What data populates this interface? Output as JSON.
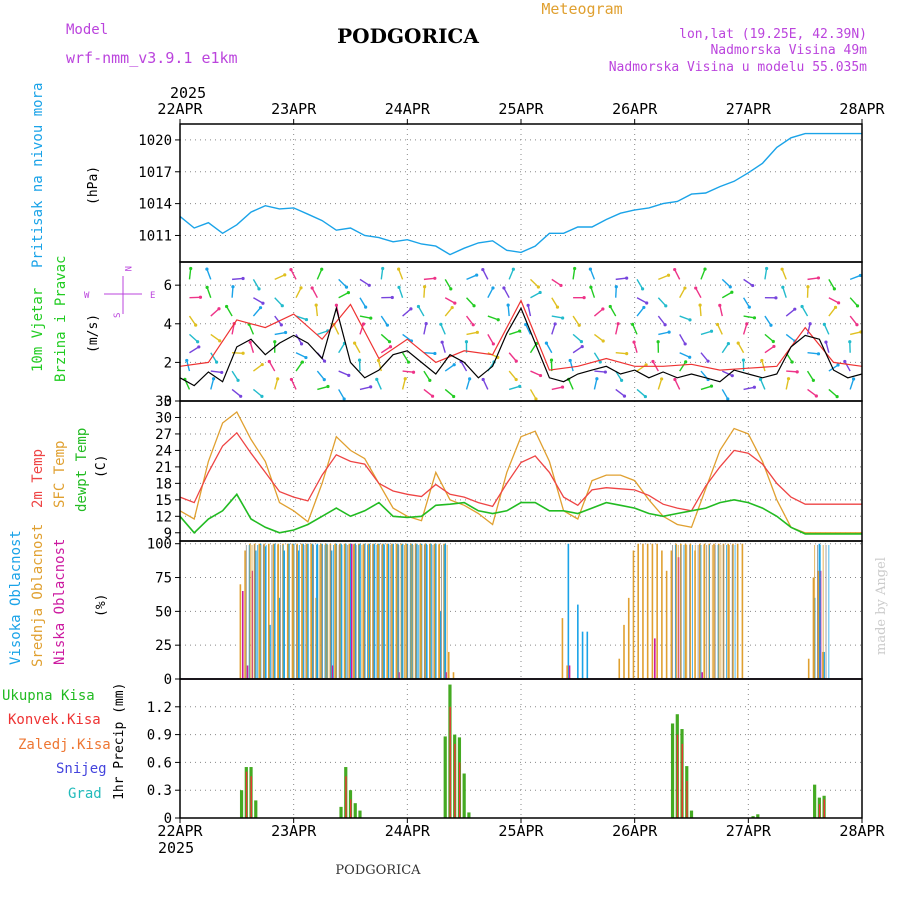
{
  "header": {
    "title": "PODGORICA",
    "subtitle": "Meteogram",
    "model_label": "Model",
    "model_name": "wrf-nmm_v3.9.1  e1km",
    "coords": "lon,lat (19.25E, 42.39N)",
    "elevation": "Nadmorska Visina 49m",
    "model_elevation": "Nadmorska Visina u modelu 55.035m",
    "year_top": "2025",
    "year_bottom": "2025",
    "footer_title": "PODGORICA",
    "credit": "made by Angel"
  },
  "colors": {
    "pressure": "#1aa3e8",
    "wind_label": "#22cc22",
    "wind_speed": "#000000",
    "wind_gust": "#ee3333",
    "temp_2m": "#ee4444",
    "temp_sfc": "#e0a030",
    "dewpoint": "#22bb22",
    "cloud_high": "#1aa3e8",
    "cloud_mid": "#e0a030",
    "cloud_low": "#cc1aa0",
    "precip_total": "#44aa22",
    "precip_conv": "#ee3333",
    "precip_frozen": "#ee7733",
    "snow": "#4444dd",
    "hail": "#22bbbb",
    "compass": "#bb44dd",
    "grid": "#888888"
  },
  "chart_data": [
    {
      "type": "line",
      "panel": "pressure",
      "label": "Pritisak na nivou mora",
      "unit": "(hPa)",
      "x_ticks": [
        "22APR",
        "23APR",
        "24APR",
        "25APR",
        "26APR",
        "27APR",
        "28APR"
      ],
      "x_range_hours": [
        0,
        144
      ],
      "ylim": [
        1008.5,
        1021.5
      ],
      "y_ticks": [
        1011,
        1014,
        1017,
        1020
      ],
      "series": [
        {
          "key": "pressure",
          "x": [
            0,
            3,
            6,
            9,
            12,
            15,
            18,
            21,
            24,
            27,
            30,
            33,
            36,
            39,
            42,
            45,
            48,
            51,
            54,
            57,
            60,
            63,
            66,
            69,
            72,
            75,
            78,
            81,
            84,
            87,
            90,
            93,
            96,
            99,
            102,
            105,
            108,
            111,
            114,
            117,
            120,
            123,
            126,
            129,
            132,
            135,
            138,
            141,
            144
          ],
          "values": [
            1012.8,
            1011.7,
            1012.2,
            1011.2,
            1012.0,
            1013.2,
            1013.8,
            1013.5,
            1013.6,
            1013.0,
            1012.4,
            1011.5,
            1011.7,
            1011.0,
            1010.8,
            1010.4,
            1010.6,
            1010.2,
            1010.0,
            1009.2,
            1009.8,
            1010.3,
            1010.5,
            1009.6,
            1009.4,
            1010.0,
            1011.2,
            1011.2,
            1011.8,
            1011.8,
            1012.5,
            1013.1,
            1013.4,
            1013.6,
            1014.0,
            1014.2,
            1014.9,
            1015.0,
            1015.6,
            1016.1,
            1016.9,
            1017.8,
            1019.3,
            1020.2,
            1020.6,
            1020.6,
            1020.6,
            1020.6,
            1020.6
          ]
        }
      ]
    },
    {
      "type": "line",
      "panel": "wind",
      "label_1": "10m Vjetar",
      "label_2": "Brzina i Pravac",
      "unit": "(m/s)",
      "compass_n": "N",
      "compass_w": "W",
      "compass_e": "E",
      "compass_s": "S",
      "ylim": [
        0,
        7.2
      ],
      "y_ticks": [
        0,
        2,
        4,
        6
      ],
      "series": [
        {
          "key": "wind_speed",
          "x": [
            0,
            3,
            6,
            9,
            12,
            15,
            18,
            21,
            24,
            27,
            30,
            33,
            36,
            39,
            42,
            45,
            48,
            51,
            54,
            57,
            60,
            63,
            66,
            69,
            72,
            75,
            78,
            81,
            84,
            87,
            90,
            93,
            96,
            99,
            102,
            105,
            108,
            111,
            114,
            117,
            120,
            123,
            126,
            129,
            132,
            135,
            138,
            141,
            144
          ],
          "values": [
            1.2,
            0.8,
            1.5,
            1.0,
            2.8,
            3.2,
            2.4,
            3.0,
            3.4,
            3.0,
            2.2,
            4.8,
            2.0,
            1.2,
            1.6,
            2.4,
            2.6,
            2.0,
            1.4,
            2.4,
            2.0,
            1.2,
            1.8,
            3.5,
            4.8,
            3.0,
            1.2,
            1.0,
            1.4,
            1.6,
            1.8,
            1.4,
            1.6,
            1.2,
            1.5,
            1.2,
            1.4,
            1.2,
            1.0,
            1.6,
            1.4,
            1.2,
            1.4,
            2.8,
            3.4,
            3.2,
            1.6,
            1.2,
            1.4
          ]
        },
        {
          "key": "wind_gust",
          "x": [
            0,
            6,
            12,
            18,
            24,
            30,
            36,
            42,
            48,
            54,
            60,
            66,
            72,
            78,
            84,
            90,
            96,
            102,
            108,
            114,
            120,
            126,
            132,
            138,
            144
          ],
          "values": [
            1.8,
            2.0,
            4.2,
            3.8,
            4.5,
            3.2,
            5.0,
            2.2,
            3.2,
            2.0,
            2.6,
            2.4,
            5.2,
            1.6,
            1.8,
            2.2,
            1.8,
            1.8,
            1.9,
            1.6,
            1.7,
            1.8,
            3.8,
            2.0,
            1.8
          ]
        }
      ]
    },
    {
      "type": "line",
      "panel": "temperature",
      "label_1": "2m Temp",
      "label_2": "SFC Temp",
      "label_3": "dewpt Temp",
      "unit": "(C)",
      "ylim": [
        7.5,
        33
      ],
      "y_ticks": [
        9,
        12,
        15,
        18,
        21,
        24,
        27,
        30,
        33
      ],
      "series": [
        {
          "key": "temp_2m",
          "x": [
            0,
            3,
            6,
            9,
            12,
            15,
            18,
            21,
            24,
            27,
            30,
            33,
            36,
            39,
            42,
            45,
            48,
            51,
            54,
            57,
            60,
            63,
            66,
            69,
            72,
            75,
            78,
            81,
            84,
            87,
            90,
            93,
            96,
            99,
            102,
            105,
            108,
            111,
            114,
            117,
            120,
            123,
            126,
            129,
            132,
            135,
            138,
            141,
            144
          ],
          "values": [
            15.5,
            14.5,
            20.0,
            24.8,
            27.2,
            23.5,
            20.0,
            16.5,
            15.5,
            14.8,
            19.5,
            23.2,
            22.0,
            21.5,
            18.0,
            16.6,
            16.0,
            15.6,
            17.8,
            16.0,
            15.5,
            14.5,
            13.8,
            18.0,
            21.8,
            23.0,
            20.0,
            15.5,
            14.0,
            16.8,
            17.2,
            17.0,
            16.8,
            15.8,
            14.2,
            13.5,
            13.0,
            17.5,
            21.0,
            24.0,
            23.5,
            21.5,
            18.0,
            15.5,
            14.2,
            14.2,
            14.2,
            14.2,
            14.2
          ]
        },
        {
          "key": "temp_sfc",
          "x": [
            0,
            3,
            6,
            9,
            12,
            15,
            18,
            21,
            24,
            27,
            30,
            33,
            36,
            39,
            42,
            45,
            48,
            51,
            54,
            57,
            60,
            63,
            66,
            69,
            72,
            75,
            78,
            81,
            84,
            87,
            90,
            93,
            96,
            99,
            102,
            105,
            108,
            111,
            114,
            117,
            120,
            123,
            126,
            129,
            132,
            135,
            138,
            141,
            144
          ],
          "values": [
            13.0,
            11.5,
            22.0,
            29.0,
            31.0,
            26.0,
            22.0,
            14.5,
            13.0,
            11.0,
            18.0,
            26.5,
            24.0,
            22.5,
            18.0,
            13.5,
            12.0,
            11.2,
            20.0,
            15.0,
            14.0,
            12.5,
            10.5,
            20.0,
            26.5,
            27.5,
            22.0,
            13.0,
            11.5,
            18.5,
            19.5,
            19.5,
            18.5,
            15.0,
            12.0,
            10.5,
            10.0,
            17.0,
            24.0,
            28.0,
            27.0,
            22.0,
            15.0,
            10.0,
            9.0,
            9.0,
            9.0,
            9.0,
            9.0
          ]
        },
        {
          "key": "dewpoint",
          "x": [
            0,
            3,
            6,
            9,
            12,
            15,
            18,
            21,
            24,
            27,
            30,
            33,
            36,
            39,
            42,
            45,
            48,
            51,
            54,
            57,
            60,
            63,
            66,
            69,
            72,
            75,
            78,
            81,
            84,
            87,
            90,
            93,
            96,
            99,
            102,
            105,
            108,
            111,
            114,
            117,
            120,
            123,
            126,
            129,
            132,
            135,
            138,
            141,
            144
          ],
          "values": [
            12.0,
            9.0,
            11.5,
            13.0,
            16.0,
            11.5,
            10.0,
            9.0,
            9.5,
            10.5,
            12.0,
            13.5,
            12.0,
            13.0,
            14.5,
            12.0,
            11.8,
            12.0,
            14.0,
            14.2,
            14.5,
            13.0,
            12.5,
            13.0,
            14.5,
            14.5,
            13.0,
            13.0,
            12.5,
            13.5,
            14.5,
            14.0,
            13.5,
            12.5,
            12.0,
            12.5,
            13.0,
            13.5,
            14.5,
            15.0,
            14.5,
            13.5,
            12.0,
            10.0,
            8.8,
            8.8,
            8.8,
            8.8,
            8.8
          ]
        }
      ]
    },
    {
      "type": "bar",
      "panel": "clouds",
      "label_1": "Visoka Oblacnost",
      "label_2": "Srednja Oblacnost",
      "label_3": "Niska Oblacnost",
      "unit": "(%)",
      "ylim": [
        0,
        102
      ],
      "y_ticks": [
        0,
        25,
        50,
        75,
        100
      ],
      "overcast_segments_hours": [
        [
          14,
          22
        ],
        [
          24,
          57
        ],
        [
          104,
          118
        ],
        [
          134,
          137
        ]
      ],
      "series": [
        {
          "key": "cloud_high",
          "x": [
            16,
            17,
            18,
            19,
            20,
            21,
            22,
            23,
            24,
            25,
            26,
            27,
            28,
            29,
            30,
            31,
            32,
            33,
            34,
            35,
            36,
            37,
            38,
            39,
            40,
            41,
            42,
            43,
            44,
            45,
            46,
            47,
            48,
            49,
            50,
            51,
            52,
            53,
            54,
            55,
            56,
            82,
            84,
            85,
            86,
            134,
            135,
            136
          ],
          "values": [
            95,
            100,
            98,
            40,
            100,
            60,
            95,
            100,
            100,
            95,
            100,
            100,
            100,
            100,
            100,
            100,
            95,
            100,
            100,
            100,
            100,
            100,
            100,
            100,
            100,
            100,
            100,
            100,
            100,
            100,
            100,
            100,
            100,
            100,
            100,
            100,
            100,
            100,
            100,
            50,
            100,
            100,
            55,
            35,
            35,
            60,
            100,
            20
          ]
        },
        {
          "key": "cloud_mid",
          "x": [
            13,
            14,
            15,
            16,
            17,
            18,
            19,
            20,
            21,
            22,
            23,
            24,
            25,
            26,
            27,
            28,
            29,
            30,
            31,
            32,
            33,
            34,
            35,
            36,
            37,
            38,
            39,
            40,
            41,
            42,
            43,
            44,
            45,
            46,
            47,
            48,
            49,
            50,
            51,
            52,
            53,
            54,
            55,
            56,
            57,
            58,
            81,
            82,
            93,
            94,
            95,
            96,
            97,
            98,
            99,
            100,
            101,
            102,
            103,
            104,
            105,
            106,
            107,
            108,
            109,
            110,
            111,
            112,
            113,
            114,
            115,
            116,
            117,
            118,
            119,
            133,
            134,
            135,
            136
          ],
          "values": [
            70,
            95,
            100,
            100,
            100,
            100,
            100,
            100,
            100,
            100,
            100,
            100,
            100,
            100,
            100,
            100,
            60,
            100,
            100,
            100,
            100,
            100,
            100,
            100,
            100,
            100,
            100,
            100,
            100,
            100,
            100,
            100,
            100,
            100,
            100,
            100,
            100,
            100,
            100,
            100,
            100,
            100,
            100,
            100,
            20,
            5,
            45,
            10,
            15,
            40,
            60,
            95,
            100,
            100,
            100,
            100,
            100,
            95,
            80,
            95,
            100,
            100,
            100,
            100,
            95,
            100,
            100,
            100,
            100,
            100,
            100,
            100,
            100,
            100,
            100,
            15,
            75,
            80,
            20
          ]
        },
        {
          "key": "cloud_low",
          "x": [
            13,
            14,
            15,
            32,
            36,
            46,
            56,
            82,
            100,
            105,
            110,
            135
          ],
          "values": [
            65,
            10,
            80,
            10,
            100,
            5,
            5,
            10,
            30,
            90,
            5,
            80
          ]
        }
      ]
    },
    {
      "type": "bar",
      "panel": "precip",
      "label_1": "Ukupna Kisa",
      "label_2": "Konvek.Kisa",
      "label_3": "Zaledj.Kisa",
      "label_4": "Snijeg",
      "label_5": "Grad",
      "unit": "1hr Precip (mm)",
      "ylim": [
        0,
        1.5
      ],
      "y_ticks": [
        0,
        0.3,
        0.6,
        0.9,
        1.2
      ],
      "series": [
        {
          "key": "precip_total",
          "x": [
            13,
            14,
            15,
            16,
            34,
            35,
            36,
            37,
            38,
            56,
            57,
            58,
            59,
            60,
            61,
            104,
            105,
            106,
            107,
            108,
            121,
            122,
            134,
            135,
            136
          ],
          "values": [
            0.3,
            0.55,
            0.55,
            0.19,
            0.12,
            0.55,
            0.3,
            0.16,
            0.08,
            0.88,
            1.44,
            0.9,
            0.87,
            0.48,
            0.06,
            1.02,
            1.12,
            0.96,
            0.56,
            0.08,
            0.02,
            0.04,
            0.36,
            0.22,
            0.24
          ]
        },
        {
          "key": "precip_conv",
          "x": [
            14,
            15,
            35,
            36,
            57,
            58,
            59,
            105,
            106,
            107,
            135,
            136
          ],
          "values": [
            0.5,
            0.45,
            0.45,
            0.2,
            1.2,
            0.8,
            0.6,
            0.9,
            0.8,
            0.4,
            0.15,
            0.2
          ]
        }
      ]
    }
  ]
}
